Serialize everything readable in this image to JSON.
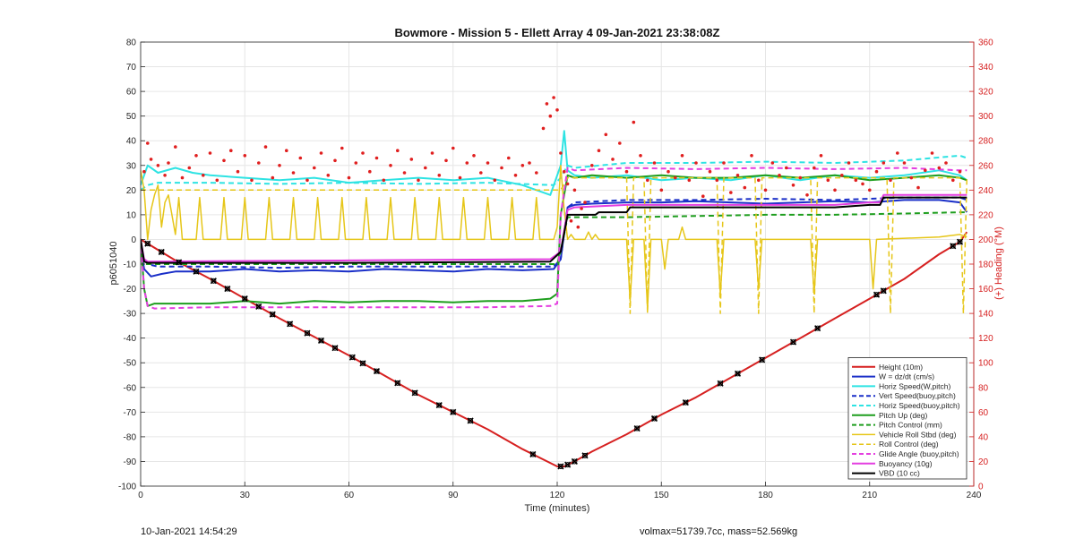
{
  "chart_data": {
    "type": "line",
    "title": "Bowmore - Mission 5 - Ellett Array 4 09-Jan-2021 23:38:08Z",
    "xlabel": "Time (minutes)",
    "ylabel": "p6051040",
    "y2label": "(+) Heading (°M)",
    "xlim": [
      0,
      240
    ],
    "ylim": [
      -100,
      80
    ],
    "y2lim": [
      0,
      360
    ],
    "xticks": [
      0,
      30,
      60,
      90,
      120,
      150,
      180,
      210,
      240
    ],
    "yticks": [
      -100,
      -90,
      -80,
      -70,
      -60,
      -50,
      -40,
      -30,
      -20,
      -10,
      0,
      10,
      20,
      30,
      40,
      50,
      60,
      70,
      80
    ],
    "y2ticks": [
      0,
      20,
      40,
      60,
      80,
      100,
      120,
      140,
      160,
      180,
      200,
      220,
      240,
      260,
      280,
      300,
      320,
      340,
      360
    ],
    "grid": true,
    "legend_position": "bottom-right",
    "series": [
      {
        "name": "Height (10m)",
        "color": "#d62020",
        "style": "solid",
        "width": 2,
        "x": [
          0,
          10,
          20,
          30,
          40,
          50,
          60,
          70,
          80,
          90,
          100,
          110,
          120,
          122,
          125,
          130,
          140,
          150,
          160,
          170,
          180,
          190,
          200,
          210,
          220,
          230,
          236,
          238
        ],
        "y": [
          0,
          -8.5,
          -16,
          -24,
          -32,
          -39.5,
          -47,
          -55,
          -63,
          -70,
          -77,
          -85,
          -92,
          -92,
          -90,
          -86,
          -79,
          -71,
          -64,
          -56,
          -48,
          -40,
          -32,
          -24,
          -16,
          -6,
          -1,
          3
        ]
      },
      {
        "name": "W = dz/dt (cm/s)",
        "color": "#1a2fc8",
        "style": "solid",
        "width": 2,
        "x": [
          0,
          1,
          3,
          6,
          10,
          20,
          30,
          40,
          50,
          60,
          70,
          80,
          90,
          100,
          110,
          119,
          121,
          123,
          125,
          130,
          140,
          150,
          160,
          170,
          180,
          190,
          200,
          210,
          220,
          230,
          236,
          238
        ],
        "y": [
          -3,
          -12,
          -15,
          -14,
          -13,
          -13,
          -12,
          -13,
          -12.5,
          -13,
          -12,
          -12.5,
          -13,
          -12,
          -12.5,
          -12,
          -8,
          13,
          14,
          14.5,
          15,
          15,
          15.5,
          15,
          14.5,
          15,
          15.5,
          15,
          16,
          16,
          15,
          11
        ]
      },
      {
        "name": "Horiz Speed(W,pitch)",
        "color": "#2ee3e3",
        "style": "solid",
        "width": 2,
        "x": [
          0,
          2,
          5,
          10,
          15,
          20,
          30,
          40,
          50,
          60,
          70,
          80,
          90,
          100,
          110,
          118,
          121,
          122,
          123,
          125,
          130,
          140,
          150,
          160,
          170,
          180,
          190,
          200,
          210,
          220,
          230,
          236,
          238
        ],
        "y": [
          22,
          30,
          27,
          29,
          27,
          26,
          25,
          24,
          25,
          23,
          24,
          25,
          24,
          25,
          22,
          18,
          30,
          44,
          28,
          26,
          25,
          26,
          24,
          25,
          24,
          26,
          24,
          26,
          25,
          26,
          28,
          26,
          24
        ]
      },
      {
        "name": "Vert Speed(buoy,pitch)",
        "color": "#1a2fc8",
        "style": "dashed",
        "width": 2,
        "x": [
          0,
          2,
          5,
          10,
          20,
          40,
          60,
          80,
          100,
          119,
          121,
          123,
          125,
          140,
          160,
          180,
          200,
          220,
          236,
          238
        ],
        "y": [
          -5,
          -10,
          -11,
          -11,
          -11,
          -11.5,
          -11,
          -11,
          -11,
          -11,
          -8,
          13,
          15,
          16,
          16,
          16.5,
          16,
          17,
          17,
          16
        ]
      },
      {
        "name": "Horiz Speed(buoy,pitch)",
        "color": "#2ee3e3",
        "style": "dashed",
        "width": 2,
        "x": [
          0,
          2,
          5,
          20,
          40,
          60,
          80,
          100,
          119,
          121,
          123,
          125,
          140,
          160,
          180,
          200,
          220,
          236,
          238
        ],
        "y": [
          20,
          22,
          23,
          23,
          22.5,
          23,
          22.5,
          23,
          22,
          25,
          30,
          29,
          31,
          31,
          31.5,
          31,
          32,
          34,
          33
        ]
      },
      {
        "name": "Pitch Up (deg)",
        "color": "#1e9e1e",
        "style": "solid",
        "width": 2,
        "x": [
          0,
          1,
          2,
          4,
          10,
          20,
          30,
          40,
          50,
          60,
          70,
          80,
          90,
          100,
          110,
          118,
          120,
          121,
          123,
          125,
          130,
          140,
          150,
          160,
          170,
          180,
          190,
          200,
          210,
          220,
          230,
          236,
          238
        ],
        "y": [
          0,
          -20,
          -27,
          -26,
          -26,
          -26,
          -25,
          -26,
          -25,
          -25.5,
          -25,
          -25,
          -25.5,
          -25,
          -25,
          -24,
          -22,
          10,
          26,
          25,
          26,
          25,
          26,
          25,
          25,
          26,
          25,
          26,
          24,
          25,
          26,
          25,
          24
        ]
      },
      {
        "name": "Pitch Control (mm)",
        "color": "#1e9e1e",
        "style": "dashed",
        "width": 2,
        "x": [
          0,
          1,
          2,
          120,
          121,
          123,
          125,
          140,
          160,
          180,
          200,
          220,
          236,
          238
        ],
        "y": [
          0,
          -10,
          -10,
          -10,
          -5,
          9,
          9,
          9,
          9.5,
          10,
          10,
          10.5,
          11,
          11
        ]
      },
      {
        "name": "Vehicle Roll Stbd (deg)",
        "color": "#e6c619",
        "style": "solid",
        "width": 1.5,
        "x": [
          0,
          1,
          2,
          3,
          4,
          5,
          6,
          7,
          8,
          9,
          10,
          11,
          12,
          16,
          17,
          18,
          23,
          24,
          25,
          29,
          30,
          31,
          36,
          37,
          38,
          43,
          44,
          45,
          50,
          51,
          52,
          57,
          58,
          59,
          64,
          65,
          66,
          71,
          72,
          73,
          78,
          79,
          80,
          85,
          86,
          87,
          92,
          93,
          94,
          99,
          100,
          101,
          106,
          107,
          108,
          113,
          114,
          115,
          119,
          120,
          121,
          122,
          123,
          124,
          125,
          128,
          129,
          130,
          131,
          132,
          140,
          141,
          142,
          145,
          146,
          147,
          150,
          151,
          152,
          155,
          156,
          157,
          166,
          167,
          168,
          177,
          178,
          179,
          193,
          194,
          195,
          210,
          211,
          212,
          230,
          236,
          238
        ],
        "y": [
          28,
          20,
          0,
          12,
          18,
          22,
          5,
          15,
          18,
          10,
          2,
          17,
          0,
          0,
          17,
          0,
          0,
          17,
          0,
          0,
          17,
          0,
          0,
          17,
          0,
          0,
          17,
          0,
          0,
          17,
          0,
          0,
          17,
          0,
          0,
          17,
          0,
          0,
          17,
          0,
          0,
          17,
          0,
          0,
          17,
          0,
          0,
          17,
          0,
          0,
          17,
          0,
          0,
          17,
          0,
          0,
          17,
          0,
          0,
          5,
          30,
          12,
          0,
          2,
          0,
          0,
          3,
          0,
          2,
          0,
          0,
          -25,
          0,
          0,
          -28,
          0,
          0,
          -12,
          0,
          0,
          5,
          0,
          0,
          -22,
          0,
          0,
          -20,
          0,
          0,
          -22,
          0,
          0,
          -20,
          0,
          1,
          2,
          1
        ]
      },
      {
        "name": "Roll Control (deg)",
        "color": "#e6c619",
        "style": "dashed",
        "width": 1.5,
        "x": [
          0,
          5,
          10,
          20,
          40,
          60,
          80,
          100,
          119,
          121,
          123,
          125,
          140,
          141,
          142,
          145,
          146,
          147,
          150,
          160,
          166,
          167,
          168,
          177,
          178,
          179,
          193,
          194,
          195,
          215,
          216,
          217,
          236,
          237,
          238
        ],
        "y": [
          20,
          20,
          20,
          20,
          20,
          20,
          20,
          20,
          20,
          20,
          25,
          25,
          25,
          -30,
          25,
          25,
          -30,
          25,
          25,
          25,
          25,
          -30,
          25,
          25,
          -30,
          25,
          25,
          -30,
          25,
          25,
          -30,
          25,
          25,
          -30,
          25
        ]
      },
      {
        "name": "Glide Angle (buoy,pitch)",
        "color": "#e43ee0",
        "style": "dashed",
        "width": 2,
        "x": [
          0,
          1,
          2,
          4,
          20,
          40,
          60,
          80,
          100,
          118,
          120,
          121,
          123,
          125,
          140,
          160,
          180,
          200,
          220,
          236,
          238
        ],
        "y": [
          0,
          -20,
          -27,
          -28,
          -27.5,
          -27.5,
          -27.5,
          -27.5,
          -27.5,
          -27,
          -26,
          10,
          29,
          28,
          29,
          28.5,
          29,
          28.5,
          29,
          28,
          28
        ]
      },
      {
        "name": "Buoyancy (10g)",
        "color": "#e43ee0",
        "style": "solid",
        "width": 2,
        "x": [
          0,
          1,
          2,
          60,
          118,
          121,
          123,
          125,
          140,
          160,
          180,
          200,
          210,
          213,
          214,
          236,
          238
        ],
        "y": [
          0,
          -8,
          -9,
          -8.5,
          -8,
          -5,
          12,
          13,
          14,
          14,
          14,
          14,
          15,
          15,
          18,
          18,
          18
        ]
      },
      {
        "name": "VBD (10 cc)",
        "color": "#000000",
        "style": "solid",
        "width": 2,
        "x": [
          0,
          1,
          2,
          60,
          118,
          121,
          123,
          125,
          131,
          132,
          140,
          141,
          160,
          180,
          200,
          210,
          213,
          214,
          236,
          238
        ],
        "y": [
          0,
          -9,
          -9.5,
          -9.5,
          -9,
          -5,
          10,
          10,
          10,
          11,
          11,
          13,
          13,
          13,
          13,
          14,
          14,
          17,
          17,
          17
        ]
      }
    ],
    "heading_scatter": {
      "color": "#e01f1f",
      "axis": "right",
      "x": [
        1,
        2,
        3,
        5,
        7,
        8,
        10,
        12,
        14,
        16,
        18,
        20,
        22,
        24,
        26,
        28,
        30,
        32,
        34,
        36,
        38,
        40,
        42,
        44,
        46,
        48,
        50,
        52,
        54,
        56,
        58,
        60,
        62,
        64,
        66,
        68,
        70,
        72,
        74,
        76,
        78,
        80,
        82,
        84,
        86,
        88,
        90,
        92,
        94,
        96,
        98,
        100,
        102,
        104,
        106,
        108,
        110,
        112,
        114,
        116,
        117,
        118,
        119,
        120,
        121,
        122,
        123,
        124,
        125,
        126,
        127,
        128,
        130,
        132,
        134,
        136,
        138,
        140,
        142,
        144,
        146,
        148,
        150,
        152,
        154,
        156,
        158,
        160,
        162,
        164,
        166,
        168,
        170,
        172,
        174,
        176,
        178,
        180,
        182,
        184,
        186,
        188,
        190,
        192,
        194,
        196,
        198,
        200,
        202,
        204,
        206,
        208,
        210,
        212,
        214,
        216,
        218,
        220,
        222,
        224,
        226,
        228,
        230,
        232,
        234,
        236
      ],
      "y": [
        255,
        278,
        265,
        260,
        252,
        262,
        275,
        250,
        258,
        268,
        252,
        270,
        248,
        264,
        272,
        255,
        268,
        248,
        262,
        275,
        250,
        260,
        272,
        254,
        266,
        248,
        258,
        270,
        252,
        264,
        274,
        250,
        262,
        270,
        255,
        266,
        248,
        260,
        272,
        254,
        265,
        248,
        258,
        270,
        252,
        264,
        274,
        250,
        262,
        268,
        254,
        262,
        248,
        258,
        266,
        252,
        260,
        262,
        254,
        290,
        310,
        300,
        315,
        305,
        270,
        255,
        245,
        215,
        240,
        210,
        225,
        230,
        260,
        272,
        285,
        265,
        278,
        255,
        295,
        268,
        248,
        262,
        240,
        255,
        250,
        268,
        248,
        262,
        235,
        255,
        248,
        262,
        238,
        252,
        242,
        268,
        248,
        240,
        262,
        252,
        258,
        244,
        250,
        236,
        258,
        268,
        248,
        240,
        252,
        262,
        248,
        245,
        240,
        255,
        262,
        248,
        270,
        262,
        250,
        242,
        256,
        270,
        258,
        262,
        248,
        255
      ]
    },
    "height_markers_x": [
      2,
      6,
      11,
      16,
      21,
      25,
      30,
      34,
      38,
      43,
      48,
      52,
      56,
      61,
      64,
      68,
      74,
      79,
      86,
      90,
      95,
      113,
      121,
      123,
      125,
      128,
      143,
      148,
      157,
      167,
      172,
      179,
      188,
      195,
      212,
      214,
      234,
      236
    ]
  },
  "footer": {
    "left_text": "10-Jan-2021 14:54:29",
    "right_text": "volmax=51739.7cc, mass=52.569kg"
  }
}
